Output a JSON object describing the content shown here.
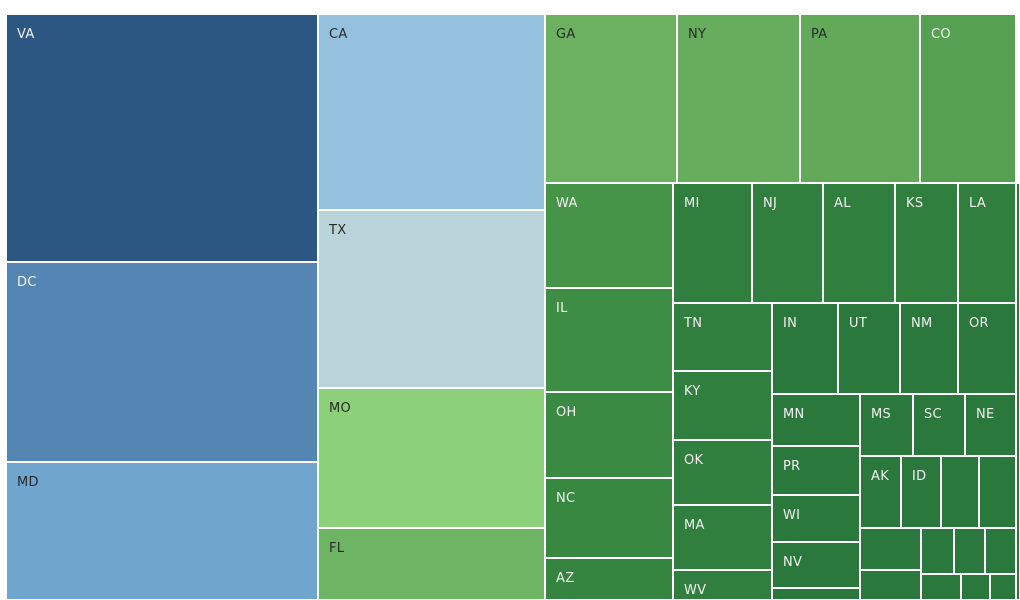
{
  "chart_data": {
    "type": "treemap",
    "title": "",
    "colors": {
      "VA": "#2b5782",
      "DC": "#5585b2",
      "MD": "#70a5cd",
      "CA": "#96c1de",
      "TX": "#b8d4d9",
      "MO": "#8dd07a",
      "FL": "#6db562",
      "GA": "#6cb160",
      "NY": "#66ad5e",
      "PA": "#62aa5a",
      "CO": "#56a051",
      "WA": "#459448",
      "IL": "#3e8d45",
      "OH": "#3b8a43",
      "NC": "#398842",
      "AZ": "#358540",
      "mid": "#317f3f",
      "deep": "#2b783d",
      "text_light": "#f2f2f2",
      "text_dark": "#2a2a2a"
    },
    "tiles": [
      {
        "label": "VA"
      },
      {
        "label": "DC"
      },
      {
        "label": "MD"
      },
      {
        "label": "CA"
      },
      {
        "label": "TX"
      },
      {
        "label": "MO"
      },
      {
        "label": "FL"
      },
      {
        "label": "GA"
      },
      {
        "label": "NY"
      },
      {
        "label": "PA"
      },
      {
        "label": "CO"
      },
      {
        "label": "WA"
      },
      {
        "label": "IL"
      },
      {
        "label": "OH"
      },
      {
        "label": "NC"
      },
      {
        "label": "AZ"
      },
      {
        "label": "MI"
      },
      {
        "label": "NJ"
      },
      {
        "label": "AL"
      },
      {
        "label": "KS"
      },
      {
        "label": "LA"
      },
      {
        "label": "TN"
      },
      {
        "label": "IN"
      },
      {
        "label": "UT"
      },
      {
        "label": "NM"
      },
      {
        "label": "OR"
      },
      {
        "label": "KY"
      },
      {
        "label": "OK"
      },
      {
        "label": "MA"
      },
      {
        "label": "WV"
      },
      {
        "label": "MN"
      },
      {
        "label": "PR"
      },
      {
        "label": "WI"
      },
      {
        "label": "NV"
      },
      {
        "label": "MS"
      },
      {
        "label": "SC"
      },
      {
        "label": "NE"
      },
      {
        "label": "AK"
      },
      {
        "label": "ID"
      },
      {
        "label": ""
      },
      {
        "label": ""
      },
      {
        "label": ""
      },
      {
        "label": ""
      },
      {
        "label": ""
      },
      {
        "label": ""
      },
      {
        "label": ""
      },
      {
        "label": ""
      },
      {
        "label": ""
      },
      {
        "label": ""
      },
      {
        "label": ""
      },
      {
        "label": ""
      }
    ]
  }
}
